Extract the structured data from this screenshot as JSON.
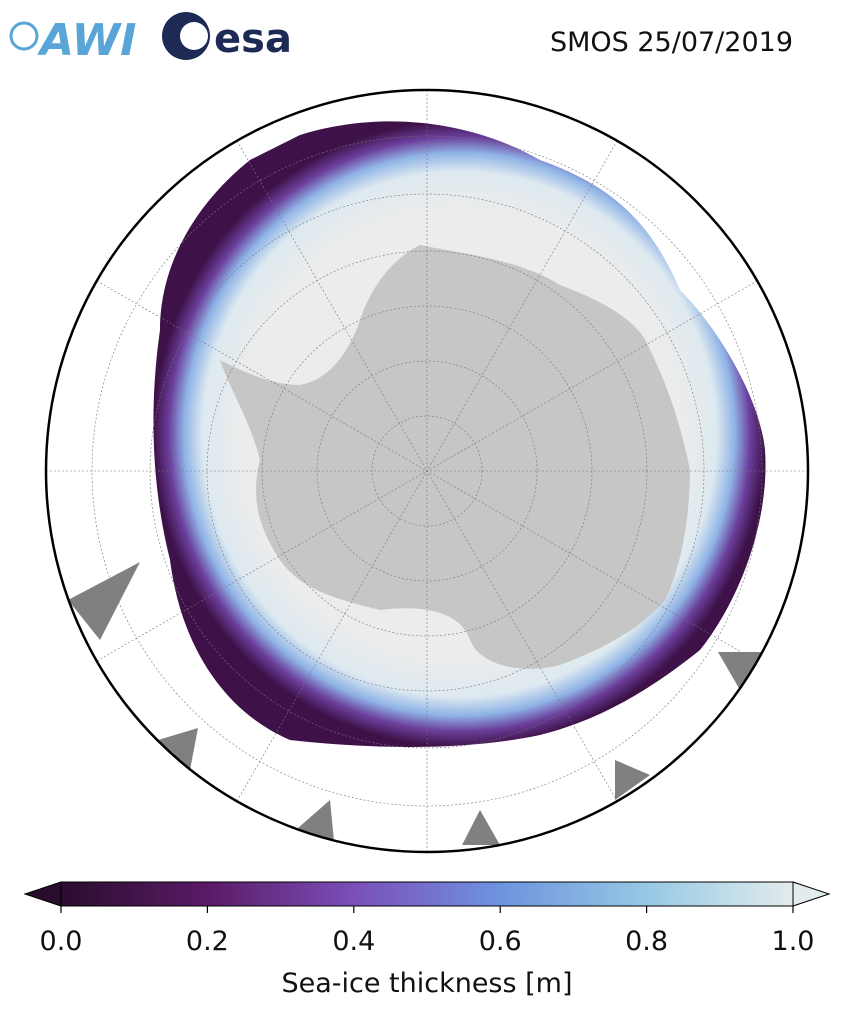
{
  "header": {
    "logos": [
      "AWI",
      "esa"
    ],
    "title": "SMOS 25/07/2019"
  },
  "map": {
    "colorbar": {
      "label": "Sea-ice thickness [m]",
      "lim": [
        0,
        1
      ],
      "ticks": [
        {
          "value": 0,
          "label": "0.0"
        },
        0.2,
        0.4,
        0.6,
        0.8,
        {
          "value": 1,
          "label": "1.0"
        }
      ],
      "colors": [
        "#2a0d2e",
        "#5a1a66",
        "#7b4fb8",
        "#6e93df",
        "#97c8e3",
        "#e2ecec"
      ]
    }
  }
}
